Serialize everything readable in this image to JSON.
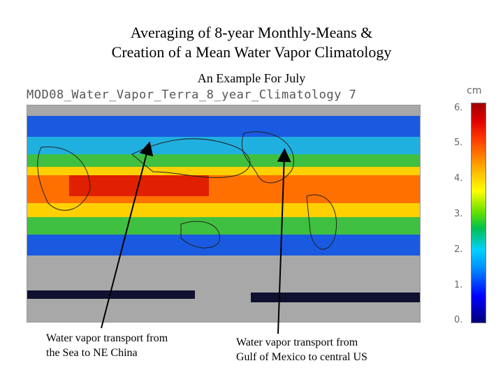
{
  "slide": {
    "title_line1": "Averaging of 8-year Monthly-Means &",
    "title_line2": "Creation of a Mean Water Vapor Climatology",
    "subtitle": "An Example For July"
  },
  "map": {
    "title": "MOD08_Water_Vapor_Terra_8_year_Climatology   7"
  },
  "colorbar": {
    "unit": "cm",
    "ticks": [
      "6.",
      "5.",
      "4.",
      "3.",
      "2.",
      "1.",
      "0."
    ]
  },
  "captions": {
    "left": [
      "Water vapor transport from",
      "the Sea to NE China"
    ],
    "right": [
      "Water vapor transport from",
      "Gulf of Mexico to central US"
    ]
  },
  "colors": {
    "wet": "#e00000",
    "humid": "#ff8000",
    "mid": "#ffff00",
    "moderate": "#40c040",
    "dry": "#0050ff",
    "no_data": "#a8a8a8"
  }
}
